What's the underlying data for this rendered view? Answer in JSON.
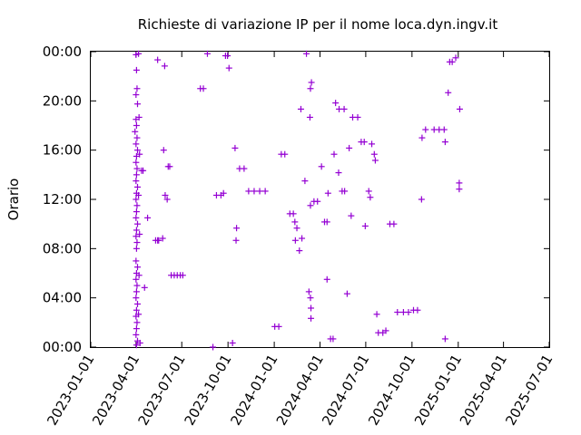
{
  "chart_data": {
    "type": "scatter",
    "title": "Richieste di variazione IP per il nome loca.dyn.ingv.it",
    "xlabel": "",
    "ylabel": "Orario",
    "x_type": "date",
    "xlim": [
      "2023-01-01",
      "2025-07-01"
    ],
    "ylim": [
      "00:00",
      "24:00"
    ],
    "x_ticks": [
      "2023-01-01",
      "2023-04-01",
      "2023-07-01",
      "2023-10-01",
      "2024-01-01",
      "2024-04-01",
      "2024-07-01",
      "2024-10-01",
      "2025-01-01",
      "2025-04-01",
      "2025-07-01"
    ],
    "y_ticks": [
      "00:00",
      "04:00",
      "08:00",
      "12:00",
      "16:00",
      "20:00",
      "00:00"
    ],
    "grid": false,
    "legend": "none",
    "marker": "+",
    "color": "#9400d3",
    "series": [
      {
        "points": [
          [
            "2023-04-01",
            "23:45"
          ],
          [
            "2023-04-02",
            "22:30"
          ],
          [
            "2023-04-03",
            "21:00"
          ],
          [
            "2023-04-01",
            "20:30"
          ],
          [
            "2023-04-04",
            "19:45"
          ],
          [
            "2023-04-01",
            "18:30"
          ],
          [
            "2023-04-02",
            "18:00"
          ],
          [
            "2023-03-30",
            "17:30"
          ],
          [
            "2023-04-03",
            "17:00"
          ],
          [
            "2023-04-01",
            "16:30"
          ],
          [
            "2023-04-04",
            "16:00"
          ],
          [
            "2023-04-02",
            "15:30"
          ],
          [
            "2023-04-01",
            "15:00"
          ],
          [
            "2023-04-03",
            "14:30"
          ],
          [
            "2023-04-02",
            "14:00"
          ],
          [
            "2023-04-01",
            "13:30"
          ],
          [
            "2023-04-04",
            "13:00"
          ],
          [
            "2023-04-02",
            "12:30"
          ],
          [
            "2023-04-01",
            "12:00"
          ],
          [
            "2023-04-03",
            "11:30"
          ],
          [
            "2023-04-02",
            "11:00"
          ],
          [
            "2023-04-01",
            "10:30"
          ],
          [
            "2023-04-04",
            "10:00"
          ],
          [
            "2023-04-02",
            "09:30"
          ],
          [
            "2023-04-01",
            "09:00"
          ],
          [
            "2023-04-03",
            "08:30"
          ],
          [
            "2023-04-02",
            "08:00"
          ],
          [
            "2023-04-01",
            "07:00"
          ],
          [
            "2023-04-04",
            "06:30"
          ],
          [
            "2023-04-02",
            "06:00"
          ],
          [
            "2023-04-01",
            "05:30"
          ],
          [
            "2023-04-03",
            "05:00"
          ],
          [
            "2023-04-02",
            "04:30"
          ],
          [
            "2023-04-01",
            "04:00"
          ],
          [
            "2023-04-04",
            "03:30"
          ],
          [
            "2023-04-02",
            "03:00"
          ],
          [
            "2023-04-01",
            "02:30"
          ],
          [
            "2023-04-03",
            "02:00"
          ],
          [
            "2023-04-02",
            "01:30"
          ],
          [
            "2023-04-01",
            "01:00"
          ],
          [
            "2023-04-04",
            "00:30"
          ],
          [
            "2023-04-02",
            "00:10"
          ],
          [
            "2023-04-06",
            "23:50"
          ],
          [
            "2023-04-07",
            "18:40"
          ],
          [
            "2023-04-06",
            "12:20"
          ],
          [
            "2023-04-08",
            "09:10"
          ],
          [
            "2023-04-07",
            "05:50"
          ],
          [
            "2023-04-06",
            "02:40"
          ],
          [
            "2023-04-09",
            "00:20"
          ],
          [
            "2023-04-08",
            "15:40"
          ],
          [
            "2023-04-12",
            "14:20"
          ],
          [
            "2023-04-15",
            "14:20"
          ],
          [
            "2023-04-18",
            "04:50"
          ],
          [
            "2023-04-24",
            "10:30"
          ],
          [
            "2023-05-10",
            "08:40"
          ],
          [
            "2023-05-14",
            "08:40"
          ],
          [
            "2023-05-16",
            "08:40"
          ],
          [
            "2023-05-14",
            "23:20"
          ],
          [
            "2023-05-28",
            "22:50"
          ],
          [
            "2023-05-24",
            "08:50"
          ],
          [
            "2023-05-26",
            "16:00"
          ],
          [
            "2023-05-29",
            "12:20"
          ],
          [
            "2023-06-02",
            "12:00"
          ],
          [
            "2023-06-04",
            "14:40"
          ],
          [
            "2023-06-07",
            "14:40"
          ],
          [
            "2023-06-10",
            "05:50"
          ],
          [
            "2023-06-16",
            "05:50"
          ],
          [
            "2023-06-22",
            "05:50"
          ],
          [
            "2023-06-28",
            "05:50"
          ],
          [
            "2023-07-03",
            "05:50"
          ],
          [
            "2023-08-07",
            "21:00"
          ],
          [
            "2023-08-13",
            "21:00"
          ],
          [
            "2023-08-21",
            "23:50"
          ],
          [
            "2023-09-01",
            "00:00"
          ],
          [
            "2023-09-08",
            "12:20"
          ],
          [
            "2023-09-17",
            "12:20"
          ],
          [
            "2023-09-22",
            "12:30"
          ],
          [
            "2023-09-26",
            "23:40"
          ],
          [
            "2023-09-30",
            "23:40"
          ],
          [
            "2023-10-03",
            "22:40"
          ],
          [
            "2023-10-10",
            "00:20"
          ],
          [
            "2023-10-15",
            "16:10"
          ],
          [
            "2023-10-18",
            "09:40"
          ],
          [
            "2023-10-17",
            "08:40"
          ],
          [
            "2023-10-24",
            "14:30"
          ],
          [
            "2023-11-02",
            "14:30"
          ],
          [
            "2023-11-11",
            "12:40"
          ],
          [
            "2023-11-22",
            "12:40"
          ],
          [
            "2023-12-03",
            "12:40"
          ],
          [
            "2023-12-14",
            "12:40"
          ],
          [
            "2024-01-02",
            "01:40"
          ],
          [
            "2024-01-10",
            "01:40"
          ],
          [
            "2024-01-15",
            "15:40"
          ],
          [
            "2024-01-22",
            "15:40"
          ],
          [
            "2024-02-01",
            "10:50"
          ],
          [
            "2024-02-08",
            "10:50"
          ],
          [
            "2024-02-11",
            "10:10"
          ],
          [
            "2024-02-12",
            "08:40"
          ],
          [
            "2024-02-15",
            "09:40"
          ],
          [
            "2024-02-20",
            "07:50"
          ],
          [
            "2024-02-25",
            "08:50"
          ],
          [
            "2024-02-23",
            "19:20"
          ],
          [
            "2024-03-02",
            "13:30"
          ],
          [
            "2024-03-05",
            "23:50"
          ],
          [
            "2024-03-10",
            "04:30"
          ],
          [
            "2024-03-13",
            "04:00"
          ],
          [
            "2024-03-14",
            "03:10"
          ],
          [
            "2024-03-14",
            "02:20"
          ],
          [
            "2024-03-15",
            "21:30"
          ],
          [
            "2024-03-13",
            "21:00"
          ],
          [
            "2024-03-12",
            "18:40"
          ],
          [
            "2024-03-13",
            "11:30"
          ],
          [
            "2024-03-20",
            "11:50"
          ],
          [
            "2024-03-27",
            "11:50"
          ],
          [
            "2024-04-04",
            "14:40"
          ],
          [
            "2024-04-10",
            "10:10"
          ],
          [
            "2024-04-15",
            "10:10"
          ],
          [
            "2024-04-17",
            "12:30"
          ],
          [
            "2024-04-15",
            "05:30"
          ],
          [
            "2024-04-22",
            "00:40"
          ],
          [
            "2024-04-27",
            "00:40"
          ],
          [
            "2024-04-29",
            "15:40"
          ],
          [
            "2024-05-02",
            "19:50"
          ],
          [
            "2024-05-08",
            "14:10"
          ],
          [
            "2024-05-09",
            "19:20"
          ],
          [
            "2024-05-15",
            "12:40"
          ],
          [
            "2024-05-20",
            "12:40"
          ],
          [
            "2024-05-19",
            "19:20"
          ],
          [
            "2024-05-25",
            "04:20"
          ],
          [
            "2024-05-29",
            "16:10"
          ],
          [
            "2024-06-02",
            "10:40"
          ],
          [
            "2024-06-05",
            "18:40"
          ],
          [
            "2024-06-15",
            "18:40"
          ],
          [
            "2024-06-22",
            "16:40"
          ],
          [
            "2024-06-28",
            "16:40"
          ],
          [
            "2024-06-30",
            "09:50"
          ],
          [
            "2024-07-07",
            "12:40"
          ],
          [
            "2024-07-10",
            "12:10"
          ],
          [
            "2024-07-13",
            "16:30"
          ],
          [
            "2024-07-18",
            "15:40"
          ],
          [
            "2024-07-20",
            "15:10"
          ],
          [
            "2024-07-23",
            "02:40"
          ],
          [
            "2024-07-26",
            "01:10"
          ],
          [
            "2024-08-04",
            "01:10"
          ],
          [
            "2024-08-10",
            "01:20"
          ],
          [
            "2024-08-18",
            "10:00"
          ],
          [
            "2024-08-26",
            "10:00"
          ],
          [
            "2024-09-02",
            "02:50"
          ],
          [
            "2024-09-14",
            "02:50"
          ],
          [
            "2024-09-24",
            "02:50"
          ],
          [
            "2024-10-04",
            "03:00"
          ],
          [
            "2024-10-12",
            "03:00"
          ],
          [
            "2024-10-20",
            "12:00"
          ],
          [
            "2024-10-21",
            "17:00"
          ],
          [
            "2024-10-28",
            "17:40"
          ],
          [
            "2024-11-14",
            "17:40"
          ],
          [
            "2024-11-24",
            "17:40"
          ],
          [
            "2024-12-04",
            "17:40"
          ],
          [
            "2024-12-06",
            "00:40"
          ],
          [
            "2024-12-06",
            "16:40"
          ],
          [
            "2024-12-12",
            "20:40"
          ],
          [
            "2024-12-15",
            "23:10"
          ],
          [
            "2024-12-20",
            "23:10"
          ],
          [
            "2024-12-27",
            "23:30"
          ],
          [
            "2025-01-04",
            "19:20"
          ],
          [
            "2025-01-03",
            "13:20"
          ],
          [
            "2025-01-03",
            "12:50"
          ]
        ]
      }
    ]
  }
}
